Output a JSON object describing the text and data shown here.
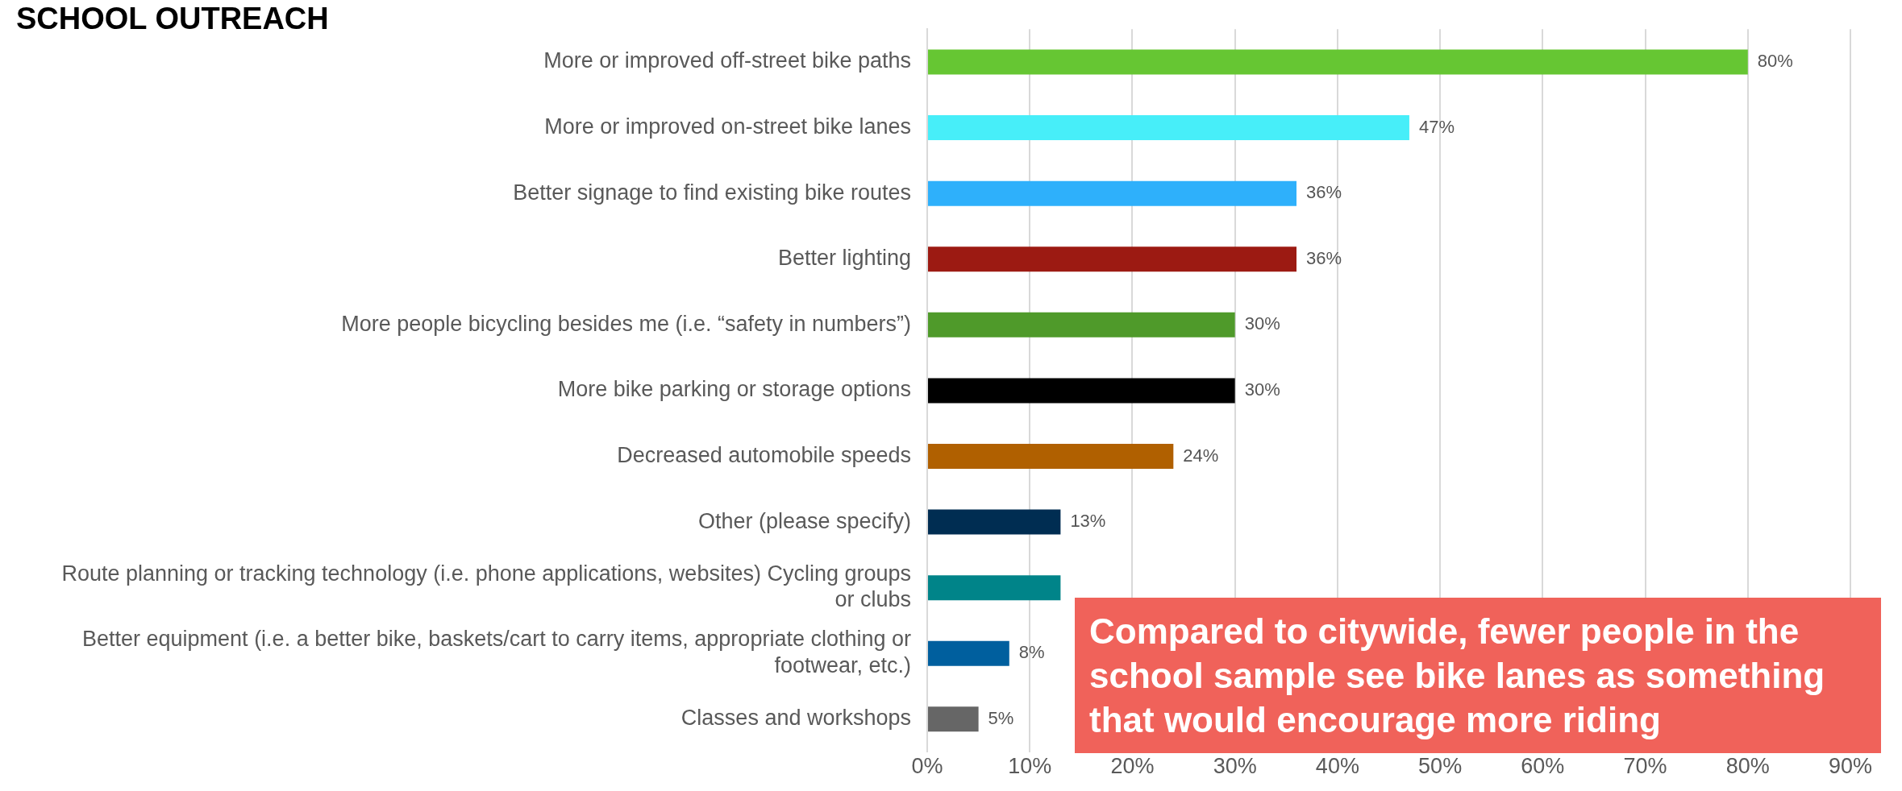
{
  "chart_data": {
    "type": "bar",
    "orientation": "horizontal",
    "title": "SCHOOL OUTREACH",
    "categories": [
      "More or improved off-street bike paths",
      "More or improved on-street bike lanes",
      "Better signage to find existing bike routes",
      "Better lighting",
      "More people bicycling besides me (i.e. “safety in numbers”)",
      "More bike parking or storage options",
      "Decreased automobile speeds",
      "Other (please specify)",
      "Route planning or tracking technology (i.e. phone applications, websites) Cycling groups or clubs",
      "Better equipment (i.e. a better bike, baskets/cart to carry items, appropriate clothing or footwear, etc.)",
      "Classes and workshops"
    ],
    "values": [
      80,
      47,
      36,
      36,
      30,
      30,
      24,
      13,
      13,
      8,
      5
    ],
    "colors": [
      "#66c633",
      "#47eef9",
      "#2eb0fb",
      "#9c1a12",
      "#4f9a2a",
      "#000000",
      "#b06000",
      "#002d52",
      "#008489",
      "#005f9e",
      "#666666"
    ],
    "value_labels": [
      "80%",
      "47%",
      "36%",
      "36%",
      "30%",
      "30%",
      "24%",
      "13%",
      null,
      "8%",
      "5%"
    ],
    "xlim": [
      0,
      90
    ],
    "xticks": [
      {
        "value": 0,
        "label": "0%"
      },
      {
        "value": 10,
        "label": "10%"
      },
      {
        "value": 20,
        "label": "20%"
      },
      {
        "value": 30,
        "label": "30%"
      },
      {
        "value": 40,
        "label": "40%"
      },
      {
        "value": 50,
        "label": "50%"
      },
      {
        "value": 60,
        "label": "60%"
      },
      {
        "value": 70,
        "label": "70%"
      },
      {
        "value": 80,
        "label": "80%"
      },
      {
        "value": 90,
        "label": "90%"
      }
    ],
    "grid": "x",
    "legend": false,
    "annotations": [
      "Compared to citywide, fewer people in the school sample see bike lanes as something that would encourage more riding"
    ]
  }
}
